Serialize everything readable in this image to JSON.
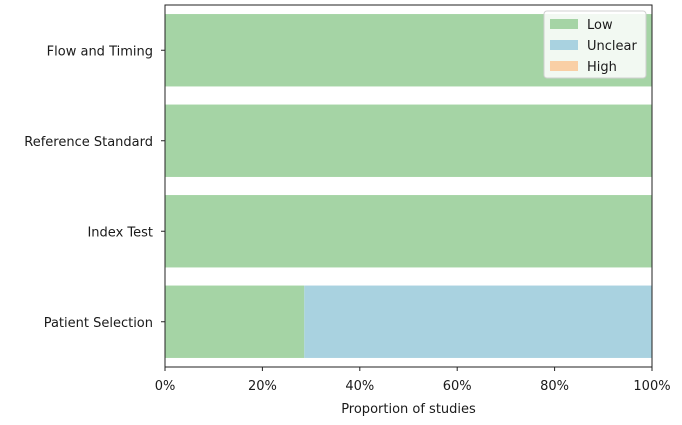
{
  "chart_data": {
    "type": "bar",
    "orientation": "horizontal",
    "stacked": true,
    "categories": [
      "Flow and Timing",
      "Reference Standard",
      "Index Test",
      "Patient Selection"
    ],
    "series": [
      {
        "name": "Low",
        "color": "#a5d4a5",
        "values": [
          1.0,
          1.0,
          1.0,
          0.286
        ]
      },
      {
        "name": "Unclear",
        "color": "#a9d2e0",
        "values": [
          0.0,
          0.0,
          0.0,
          0.714
        ]
      },
      {
        "name": "High",
        "color": "#f9cfa5",
        "values": [
          0.0,
          0.0,
          0.0,
          0.0
        ]
      }
    ],
    "xlabel": "Proportion of studies",
    "ylabel": "",
    "xlim": [
      0,
      1
    ],
    "xticks": [
      0,
      0.2,
      0.4,
      0.6,
      0.8,
      1.0
    ],
    "xtick_labels": [
      "0%",
      "20%",
      "40%",
      "60%",
      "80%",
      "100%"
    ],
    "grid": false,
    "legend_position": "top-right"
  }
}
